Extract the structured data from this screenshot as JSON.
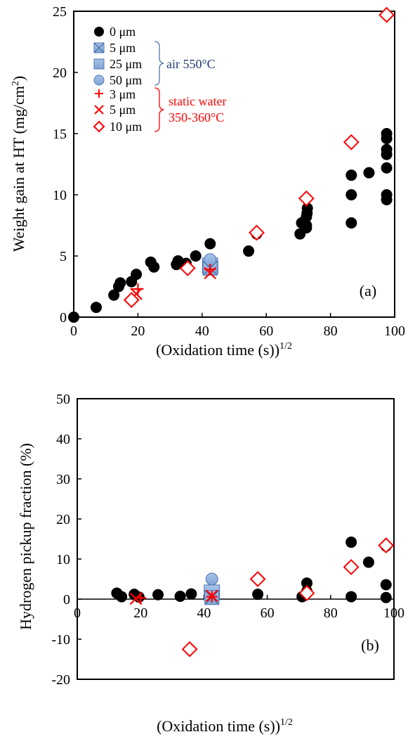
{
  "chart_data": [
    {
      "type": "scatter",
      "panel_label": "(a)",
      "ylabel_main": "Weight gain at HT (mg/cm",
      "ylabel_sup": "2",
      "ylabel_tail": ")",
      "xlabel_main": "(Oxidation time (s))",
      "xlabel_sup": "1/2",
      "xlim": [
        0,
        100
      ],
      "ylim": [
        0,
        25
      ],
      "xticks": [
        "0",
        "20",
        "40",
        "60",
        "80",
        "100"
      ],
      "yticks": [
        "0",
        "5",
        "10",
        "15",
        "20",
        "25"
      ],
      "legend": {
        "items": [
          {
            "marker": "circle-black",
            "label": "0 μm"
          },
          {
            "marker": "square-x-blue",
            "label": "5 μm"
          },
          {
            "marker": "square-blue",
            "label": "25 μm"
          },
          {
            "marker": "circle-blue",
            "label": "50 μm"
          },
          {
            "marker": "plus-red",
            "label": "3 μm"
          },
          {
            "marker": "x-red",
            "label": "5 μm"
          },
          {
            "marker": "diamond-red",
            "label": "10 μm"
          }
        ],
        "group_air": "air 550°C",
        "group_water_1": "static water",
        "group_water_2": "350-360°C"
      },
      "series": [
        {
          "marker": "circle-black",
          "points": [
            [
              0,
              0
            ],
            [
              7,
              0.8
            ],
            [
              12.5,
              1.8
            ],
            [
              14,
              2.5
            ],
            [
              14.5,
              2.8
            ],
            [
              18,
              2.9
            ],
            [
              19.5,
              3.5
            ],
            [
              24,
              4.5
            ],
            [
              25,
              4.1
            ],
            [
              32,
              4.3
            ],
            [
              32.5,
              4.6
            ],
            [
              35,
              4.4
            ],
            [
              38,
              5
            ],
            [
              42.5,
              6
            ],
            [
              54.5,
              5.4
            ],
            [
              57,
              6.8
            ],
            [
              70.5,
              6.8
            ],
            [
              71,
              7.7
            ],
            [
              72.5,
              7.3
            ],
            [
              72.5,
              8.2
            ],
            [
              72.5,
              7.5
            ],
            [
              72.7,
              8.5
            ],
            [
              72.8,
              8.9
            ],
            [
              86.5,
              11.6
            ],
            [
              86.5,
              10
            ],
            [
              86.5,
              7.7
            ],
            [
              92,
              11.8
            ],
            [
              97.5,
              15
            ],
            [
              97.5,
              14.6
            ],
            [
              97.5,
              13.7
            ],
            [
              97.5,
              13.3
            ],
            [
              97.5,
              12.2
            ],
            [
              97.5,
              10
            ],
            [
              97.5,
              9.6
            ]
          ]
        },
        {
          "marker": "square-blue",
          "points": [
            [
              42.5,
              4.2
            ]
          ]
        },
        {
          "marker": "square-x-blue",
          "points": [
            [
              42.5,
              4.0
            ]
          ]
        },
        {
          "marker": "circle-blue",
          "points": [
            [
              42.5,
              4.7
            ]
          ]
        },
        {
          "marker": "plus-red",
          "points": [
            [
              20,
              2.3
            ],
            [
              42.5,
              3.9
            ]
          ]
        },
        {
          "marker": "x-red",
          "points": [
            [
              19.5,
              1.9
            ],
            [
              42.5,
              3.6
            ]
          ]
        },
        {
          "marker": "diamond-red",
          "points": [
            [
              18,
              1.4
            ],
            [
              35.5,
              4
            ],
            [
              57,
              6.9
            ],
            [
              72.5,
              9.7
            ],
            [
              86.5,
              14.3
            ],
            [
              97.5,
              24.7
            ]
          ]
        }
      ]
    },
    {
      "type": "scatter",
      "panel_label": "(b)",
      "ylabel_main": "Hydrogen pickup fraction (%)",
      "xlabel_main": "(Oxidation time (s))",
      "xlabel_sup": "1/2",
      "xlim": [
        0,
        100
      ],
      "ylim": [
        -20,
        50
      ],
      "xticks": [
        "0",
        "20",
        "40",
        "60",
        "80",
        "100"
      ],
      "yticks": [
        "-20",
        "-10",
        "0",
        "10",
        "20",
        "30",
        "40",
        "50"
      ],
      "series": [
        {
          "marker": "circle-black",
          "points": [
            [
              12.5,
              1.5
            ],
            [
              14,
              0.6
            ],
            [
              18,
              1.2
            ],
            [
              19.5,
              0.5
            ],
            [
              25.5,
              1.1
            ],
            [
              32.5,
              0.7
            ],
            [
              36,
              1.3
            ],
            [
              57,
              1.2
            ],
            [
              71,
              0.6
            ],
            [
              72.5,
              4
            ],
            [
              72.5,
              2
            ],
            [
              86.5,
              14.2
            ],
            [
              86.5,
              0.6
            ],
            [
              92,
              9.2
            ],
            [
              97.5,
              13.2
            ],
            [
              97.5,
              3.6
            ],
            [
              97.5,
              0.4
            ]
          ]
        },
        {
          "marker": "square-blue",
          "points": [
            [
              42.5,
              1.6
            ]
          ]
        },
        {
          "marker": "square-x-blue",
          "points": [
            [
              42.5,
              0.4
            ]
          ]
        },
        {
          "marker": "circle-blue",
          "points": [
            [
              42.5,
              5
            ]
          ]
        },
        {
          "marker": "plus-red",
          "points": [
            [
              20,
              0.3
            ],
            [
              42.5,
              0.6
            ]
          ]
        },
        {
          "marker": "x-red",
          "points": [
            [
              18.5,
              0.1
            ],
            [
              42.5,
              0.8
            ]
          ]
        },
        {
          "marker": "diamond-red",
          "points": [
            [
              35.5,
              -12.5
            ],
            [
              57,
              5
            ],
            [
              72.5,
              1.5
            ],
            [
              86.5,
              8
            ],
            [
              97.5,
              13.4
            ]
          ]
        }
      ]
    }
  ]
}
